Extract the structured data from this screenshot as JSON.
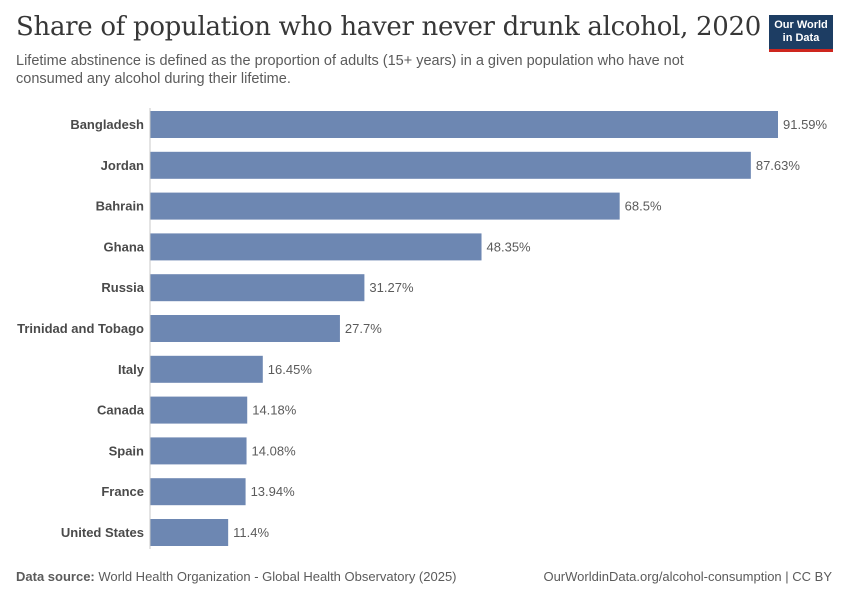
{
  "header": {
    "title": "Share of population who haver never drunk alcohol, 2020",
    "subtitle": "Lifetime abstinence is defined as the proportion of adults (15+ years) in a given population who have not consumed any alcohol during their lifetime."
  },
  "logo": {
    "line1": "Our World",
    "line2": "in Data"
  },
  "footer": {
    "source_label": "Data source:",
    "source_text": " World Health Organization - Global Health Observatory (2025)",
    "url_license": "OurWorldinData.org/alcohol-consumption | CC BY"
  },
  "colors": {
    "bar": "#6d87b2",
    "axis": "#c8c8c8",
    "category_text": "#4a4a4a",
    "value_text": "#5b5b5b"
  },
  "chart_data": {
    "type": "bar",
    "orientation": "horizontal",
    "title": "Share of population who haver never drunk alcohol, 2020",
    "categories": [
      "Bangladesh",
      "Jordan",
      "Bahrain",
      "Ghana",
      "Russia",
      "Trinidad and Tobago",
      "Italy",
      "Canada",
      "Spain",
      "France",
      "United States"
    ],
    "values": [
      91.59,
      87.63,
      68.5,
      48.35,
      31.27,
      27.7,
      16.45,
      14.18,
      14.08,
      13.94,
      11.4
    ],
    "labels": [
      "91.59%",
      "87.63%",
      "68.5%",
      "48.35%",
      "31.27%",
      "27.7%",
      "16.45%",
      "14.18%",
      "14.08%",
      "13.94%",
      "11.4%"
    ],
    "unit": "%",
    "xlim": [
      0,
      91.59
    ],
    "grid": false
  }
}
